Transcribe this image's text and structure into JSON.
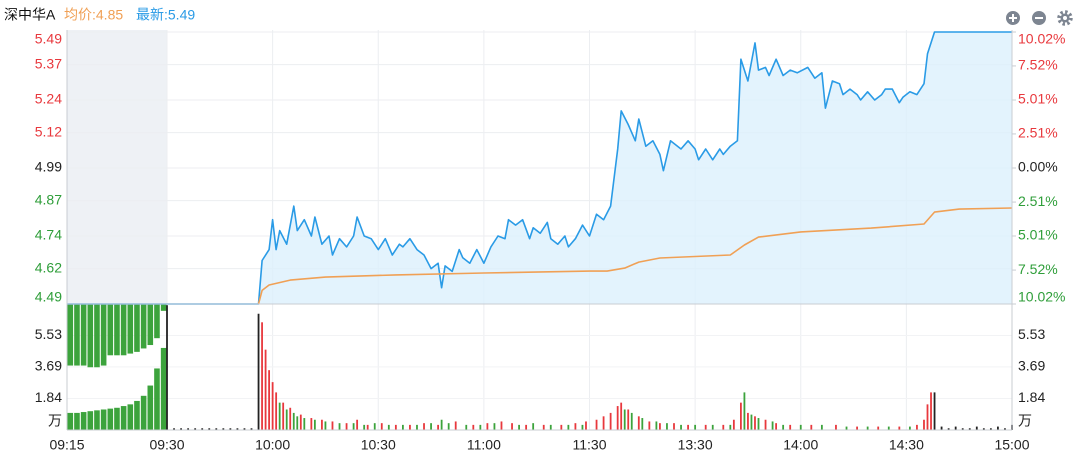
{
  "chart_data": [
    {
      "type": "line",
      "title": "深中华A",
      "avg_label": "均价:4.85",
      "last_label": "最新:5.49",
      "xticks": [
        "09:15",
        "09:30",
        "10:00",
        "10:30",
        "11:00",
        "11:30",
        "13:30",
        "14:00",
        "14:30",
        "15:00"
      ],
      "ylim": [
        4.49,
        5.49
      ],
      "yticks": [
        4.49,
        4.62,
        4.74,
        4.87,
        4.99,
        5.12,
        5.24,
        5.37,
        5.49
      ],
      "y2lim": [
        -10.02,
        10.02
      ],
      "y2ticks": [
        {
          "value": -10.02,
          "label": "10.02%"
        },
        {
          "value": -7.52,
          "label": "7.52%"
        },
        {
          "value": -5.01,
          "label": "5.01%"
        },
        {
          "value": -2.51,
          "label": "2.51%"
        },
        {
          "value": 0,
          "label": "0.00%"
        },
        {
          "value": 2.51,
          "label": "2.51%"
        },
        {
          "value": 5.01,
          "label": "5.01%"
        },
        {
          "value": 7.52,
          "label": "7.52%"
        },
        {
          "value": 10.02,
          "label": "10.02%"
        }
      ],
      "up_color": "#e8383d",
      "down_color": "#2f9e3a",
      "flat_color": "#222222",
      "grid": true,
      "series": [
        {
          "color": "#2a9be6",
          "fill": "#dcf0fc",
          "x": [
            "09:15",
            "09:30",
            "09:56",
            "09:57",
            "09:59",
            "10:00",
            "10:01",
            "10:02",
            "10:04",
            "10:06",
            "10:07",
            "10:09",
            "10:11",
            "10:12",
            "10:14",
            "10:16",
            "10:17",
            "10:19",
            "10:21",
            "10:23",
            "10:24",
            "10:26",
            "10:28",
            "10:30",
            "10:32",
            "10:34",
            "10:36",
            "10:37",
            "10:39",
            "10:41",
            "10:43",
            "10:45",
            "10:47",
            "10:48",
            "10:49",
            "10:51",
            "10:53",
            "10:54",
            "10:56",
            "10:58",
            "11:00",
            "11:02",
            "11:04",
            "11:06",
            "11:07",
            "11:09",
            "11:11",
            "11:13",
            "11:14",
            "11:16",
            "11:18",
            "11:19",
            "11:21",
            "11:23",
            "11:24",
            "11:26",
            "11:28",
            "11:30",
            "13:02",
            "13:04",
            "13:06",
            "13:08",
            "13:09",
            "13:11",
            "13:13",
            "13:14",
            "13:16",
            "13:18",
            "13:20",
            "13:21",
            "13:23",
            "13:25",
            "13:26",
            "13:28",
            "13:30",
            "13:31",
            "13:33",
            "13:35",
            "13:37",
            "13:38",
            "13:40",
            "13:42",
            "13:43",
            "13:45",
            "13:47",
            "13:48",
            "13:50",
            "13:51",
            "13:53",
            "13:55",
            "13:57",
            "13:59",
            "14:02",
            "14:04",
            "14:06",
            "14:07",
            "14:09",
            "14:11",
            "14:12",
            "14:14",
            "14:16",
            "14:17",
            "14:19",
            "14:21",
            "14:23",
            "14:24",
            "14:26",
            "14:28",
            "14:29",
            "14:31",
            "14:33",
            "14:35",
            "14:36",
            "14:38",
            "15:00"
          ],
          "values": [
            4.49,
            4.49,
            4.49,
            4.65,
            4.69,
            4.8,
            4.69,
            4.76,
            4.71,
            4.85,
            4.76,
            4.8,
            4.74,
            4.81,
            4.71,
            4.74,
            4.67,
            4.73,
            4.7,
            4.74,
            4.81,
            4.74,
            4.73,
            4.69,
            4.73,
            4.67,
            4.71,
            4.7,
            4.73,
            4.69,
            4.67,
            4.62,
            4.64,
            4.55,
            4.63,
            4.61,
            4.69,
            4.66,
            4.64,
            4.69,
            4.64,
            4.7,
            4.74,
            4.73,
            4.8,
            4.78,
            4.8,
            4.73,
            4.77,
            4.75,
            4.79,
            4.73,
            4.71,
            4.74,
            4.7,
            4.73,
            4.78,
            4.74,
            4.82,
            4.8,
            4.85,
            5.06,
            5.2,
            5.15,
            5.09,
            5.17,
            5.07,
            5.09,
            5.04,
            4.98,
            5.09,
            5.07,
            5.06,
            5.09,
            5.06,
            5.02,
            5.06,
            5.02,
            5.06,
            5.04,
            5.07,
            5.09,
            5.39,
            5.31,
            5.45,
            5.35,
            5.36,
            5.33,
            5.39,
            5.33,
            5.35,
            5.34,
            5.36,
            5.32,
            5.34,
            5.21,
            5.31,
            5.3,
            5.26,
            5.28,
            5.26,
            5.24,
            5.27,
            5.24,
            5.26,
            5.28,
            5.28,
            5.23,
            5.25,
            5.27,
            5.26,
            5.3,
            5.41,
            5.49,
            5.49
          ]
        },
        {
          "color": "#f0a055",
          "x": [
            "09:56",
            "09:57",
            "09:59",
            "10:05",
            "10:15",
            "10:35",
            "11:00",
            "11:30",
            "13:05",
            "13:10",
            "13:14",
            "13:20",
            "13:40",
            "13:44",
            "13:48",
            "14:00",
            "14:20",
            "14:35",
            "14:38",
            "14:45",
            "15:00"
          ],
          "values": [
            4.49,
            4.54,
            4.56,
            4.578,
            4.589,
            4.597,
            4.604,
            4.611,
            4.611,
            4.622,
            4.644,
            4.659,
            4.67,
            4.707,
            4.736,
            4.755,
            4.769,
            4.784,
            4.828,
            4.839,
            4.843
          ]
        }
      ]
    },
    {
      "type": "bar",
      "unit": "万",
      "ylim": [
        0,
        7.37
      ],
      "yticks": [
        1.84,
        3.69,
        5.53
      ],
      "series": [
        {
          "color": "#3ca33c",
          "x": [
            "09:15",
            "09:16",
            "09:17",
            "09:18",
            "09:19",
            "09:20",
            "09:21",
            "09:22",
            "09:23",
            "09:24",
            "09:25",
            "09:26",
            "09:27",
            "09:28",
            "09:29"
          ],
          "values": [
            1.0,
            1.0,
            1.05,
            1.1,
            1.15,
            1.2,
            1.25,
            1.3,
            1.4,
            1.5,
            1.7,
            2.0,
            2.6,
            3.6,
            4.8
          ]
        },
        {
          "color": "#3ca33c",
          "from": "top",
          "x": [
            "09:15",
            "09:16",
            "09:17",
            "09:18",
            "09:19",
            "09:20",
            "09:21",
            "09:22",
            "09:23",
            "09:24",
            "09:25",
            "09:26",
            "09:27",
            "09:28",
            "09:29"
          ],
          "values": [
            3.6,
            3.6,
            3.6,
            3.7,
            3.7,
            3.6,
            3.0,
            3.0,
            3.0,
            2.9,
            2.8,
            2.6,
            2.4,
            2.0,
            0.4
          ]
        },
        {
          "color": "#222222",
          "x": [
            "09:30",
            "09:32",
            "09:34",
            "09:36",
            "09:38",
            "09:40",
            "09:42",
            "09:44",
            "09:46",
            "09:48",
            "09:50",
            "09:52",
            "09:54",
            "09:56",
            "14:38",
            "14:40",
            "14:42",
            "14:44",
            "14:46",
            "14:48",
            "14:50",
            "14:52",
            "14:54",
            "14:56",
            "14:58",
            "15:00"
          ],
          "values": [
            7.3,
            0.1,
            0.1,
            0.1,
            0.1,
            0.1,
            0.1,
            0.1,
            0.1,
            0.1,
            0.1,
            0.1,
            0.1,
            6.8,
            2.2,
            0.2,
            0.1,
            0.2,
            0.1,
            0.1,
            0.2,
            0.1,
            0.1,
            0.2,
            0.1,
            0.3
          ]
        },
        {
          "color": "#e8383d",
          "x": [
            "09:57",
            "09:58",
            "09:59",
            "10:00",
            "10:01",
            "10:03",
            "10:05",
            "10:08",
            "10:11",
            "10:14",
            "10:17",
            "10:21",
            "10:24",
            "10:27",
            "10:31",
            "10:35",
            "10:39",
            "10:43",
            "10:47",
            "10:52",
            "10:57",
            "11:01",
            "11:05",
            "11:08",
            "11:12",
            "11:17",
            "11:22",
            "11:26",
            "11:29",
            "13:02",
            "13:04",
            "13:06",
            "13:08",
            "13:09",
            "13:11",
            "13:14",
            "13:17",
            "13:20",
            "13:24",
            "13:28",
            "13:33",
            "13:38",
            "13:41",
            "13:43",
            "13:45",
            "13:47",
            "13:50",
            "13:53",
            "13:57",
            "14:03",
            "14:10",
            "14:16",
            "14:22",
            "14:28",
            "14:33",
            "14:35",
            "14:36",
            "14:37"
          ],
          "values": [
            6.3,
            4.7,
            3.5,
            2.8,
            2.2,
            1.6,
            1.3,
            0.9,
            0.7,
            0.6,
            0.5,
            0.4,
            0.6,
            0.3,
            0.4,
            0.3,
            0.3,
            0.4,
            0.3,
            0.5,
            0.3,
            0.4,
            0.5,
            0.4,
            0.3,
            0.3,
            0.3,
            0.4,
            0.5,
            0.6,
            0.8,
            1.0,
            1.4,
            1.6,
            1.2,
            0.8,
            0.5,
            0.4,
            0.4,
            0.3,
            0.3,
            0.3,
            0.6,
            1.6,
            1.0,
            0.8,
            0.6,
            0.4,
            0.3,
            0.3,
            0.3,
            0.2,
            0.2,
            0.2,
            0.3,
            0.6,
            1.5,
            2.2
          ]
        },
        {
          "color": "#3ca33c",
          "x": [
            "10:02",
            "10:04",
            "10:06",
            "10:07",
            "10:09",
            "10:12",
            "10:15",
            "10:19",
            "10:23",
            "10:26",
            "10:29",
            "10:33",
            "10:37",
            "10:41",
            "10:45",
            "10:48",
            "10:50",
            "10:55",
            "10:59",
            "11:03",
            "11:10",
            "11:14",
            "11:19",
            "11:24",
            "11:28",
            "13:10",
            "13:12",
            "13:15",
            "13:19",
            "13:22",
            "13:26",
            "13:30",
            "13:35",
            "13:40",
            "13:44",
            "13:46",
            "13:48",
            "13:52",
            "13:55",
            "14:00",
            "14:06",
            "14:13",
            "14:19",
            "14:25",
            "14:31"
          ],
          "values": [
            1.6,
            1.2,
            1.0,
            0.8,
            0.7,
            0.6,
            0.5,
            0.4,
            0.4,
            0.3,
            0.4,
            0.3,
            0.3,
            0.3,
            0.4,
            0.6,
            0.4,
            0.3,
            0.3,
            0.4,
            0.3,
            0.4,
            0.3,
            0.3,
            0.3,
            1.2,
            1.0,
            0.7,
            0.5,
            0.4,
            0.3,
            0.3,
            0.3,
            0.3,
            2.2,
            0.9,
            0.7,
            0.5,
            0.3,
            0.3,
            0.3,
            0.2,
            0.2,
            0.2,
            0.2
          ]
        }
      ]
    }
  ]
}
